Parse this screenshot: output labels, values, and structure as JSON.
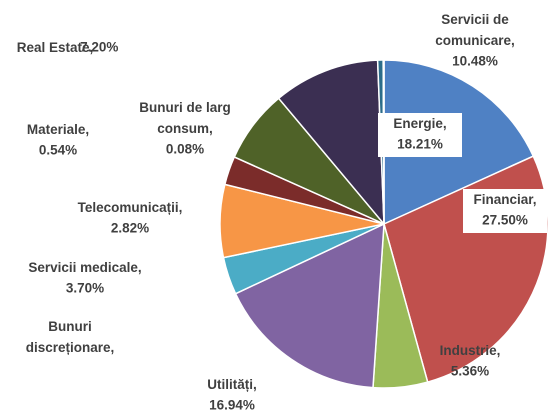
{
  "chart_data": {
    "type": "pie",
    "categories": [
      "Energie,",
      "Financiar,",
      "Industrie,",
      "Utilități,",
      "Servicii medicale,",
      "Bunuri discreționare,",
      "Telecomunicații,",
      "Real Estate,",
      "Servicii de comunicare,",
      "Materiale,",
      "Bunuri de larg consum,"
    ],
    "values": [
      18.21,
      27.5,
      5.36,
      16.94,
      3.7,
      7.17,
      2.82,
      7.2,
      10.48,
      0.54,
      0.08
    ],
    "value_labels": [
      "18.21%",
      "27.50%",
      "5.36%",
      "16.94%",
      "3.70%",
      null,
      "2.82%",
      "7.20%",
      "10.48%",
      "0.54%",
      "0.08%"
    ],
    "colors": [
      "#4f81c4",
      "#c0504d",
      "#9bbb59",
      "#8064a2",
      "#4bacc6",
      "#f79646",
      "#7b2c2a",
      "#4f6228",
      "#3b2f52",
      "#2c6d8a",
      "#a5a5a5"
    ]
  }
}
